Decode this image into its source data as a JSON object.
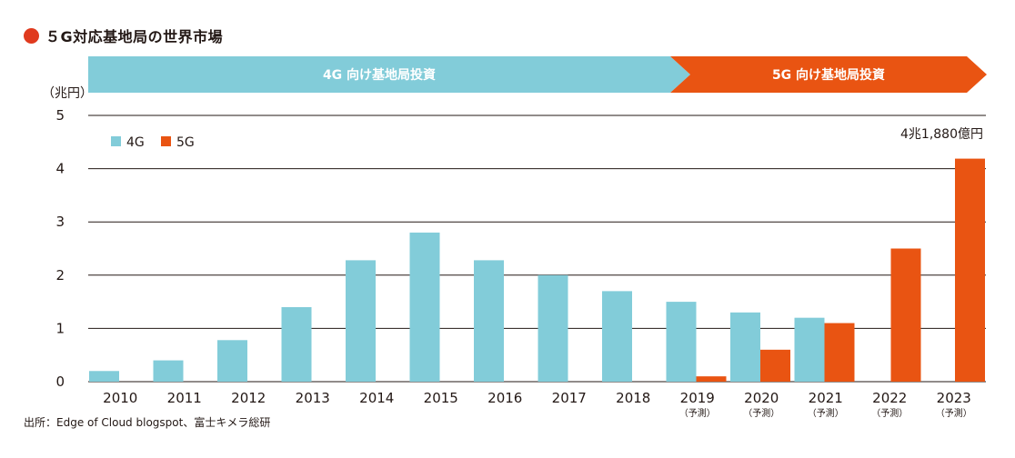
{
  "title": "５G対応基地局の世界市場",
  "source": "出所：Edge of Cloud blogspot、富士キメラ総研",
  "phases": [
    {
      "label": "4G 向け基地局投資",
      "color": "#82ccd9"
    },
    {
      "label": "5G 向け基地局投資",
      "color": "#e95412"
    }
  ],
  "callout": "4兆1,880億円",
  "colors": {
    "4G": "#82ccd9",
    "5G": "#e95412",
    "title_dot": "#e03a1e"
  },
  "chart_data": {
    "type": "bar",
    "ylabel": "（兆円）",
    "ylim": [
      0,
      5
    ],
    "yticks": [
      "0",
      "1",
      "2",
      "3",
      "4",
      "5"
    ],
    "legend_position": "top-left",
    "categories": [
      "2010",
      "2011",
      "2012",
      "2013",
      "2014",
      "2015",
      "2016",
      "2017",
      "2018",
      "2019",
      "2020",
      "2021",
      "2022",
      "2023"
    ],
    "category_notes": [
      "",
      "",
      "",
      "",
      "",
      "",
      "",
      "",
      "",
      "（予測）",
      "（予測）",
      "（予測）",
      "（予測）",
      "（予測）"
    ],
    "series": [
      {
        "name": "4G",
        "values": [
          0.2,
          0.4,
          0.78,
          1.4,
          2.28,
          2.8,
          2.28,
          2.0,
          1.7,
          1.5,
          1.3,
          1.2,
          null,
          null
        ]
      },
      {
        "name": "5G",
        "values": [
          null,
          null,
          null,
          null,
          null,
          null,
          null,
          null,
          null,
          0.1,
          0.6,
          1.1,
          2.5,
          4.188
        ]
      }
    ]
  }
}
